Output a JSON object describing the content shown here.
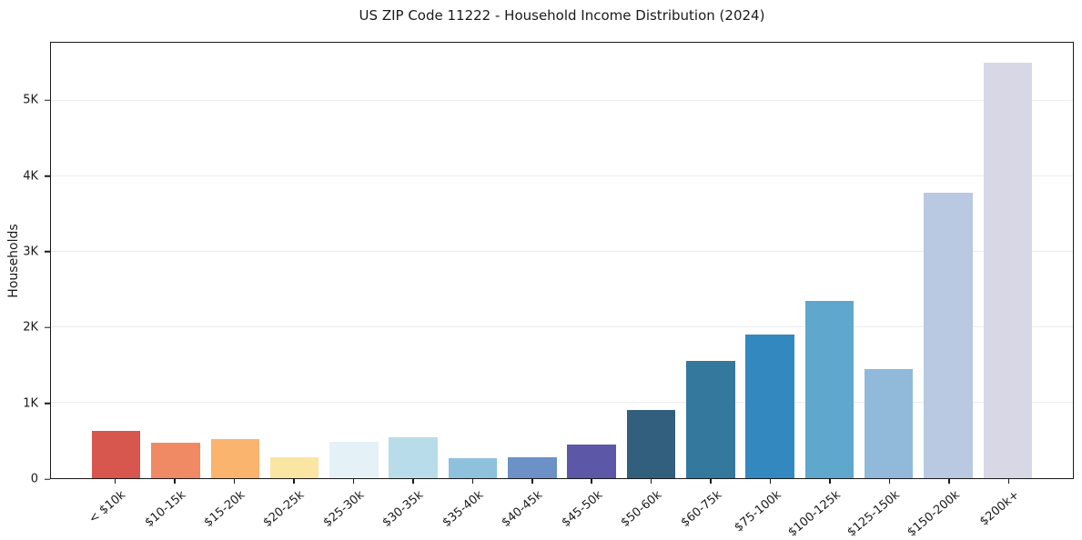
{
  "page": {
    "background": "#ffffff"
  },
  "chart_data": {
    "type": "bar",
    "title": "US ZIP Code 11222 - Household Income Distribution (2024)",
    "xlabel": "",
    "ylabel": "Households",
    "categories": [
      "< $10k",
      "$10-15k",
      "$15-20k",
      "$20-25k",
      "$25-30k",
      "$30-35k",
      "$35-40k",
      "$40-45k",
      "$45-50k",
      "$50-60k",
      "$60-75k",
      "$75-100k",
      "$100-125k",
      "$125-150k",
      "$150-200k",
      "$200k+"
    ],
    "values": [
      630,
      470,
      520,
      280,
      480,
      540,
      260,
      280,
      440,
      900,
      1550,
      1900,
      2350,
      1450,
      3780,
      5500
    ],
    "bar_colors": [
      "#d7564e",
      "#f08a64",
      "#fab46e",
      "#fbe5a2",
      "#e4f1f6",
      "#b9dcea",
      "#8fc1dd",
      "#6b91c7",
      "#5c57a7",
      "#335f7e",
      "#34789d",
      "#3389bf",
      "#60a7cd",
      "#91b9d9",
      "#b9c9e1",
      "#d7d7e6"
    ],
    "yticks": [
      {
        "value": 0,
        "label": "0"
      },
      {
        "value": 1000,
        "label": "1K"
      },
      {
        "value": 2000,
        "label": "2K"
      },
      {
        "value": 3000,
        "label": "3K"
      },
      {
        "value": 4000,
        "label": "4K"
      },
      {
        "value": 5000,
        "label": "5K"
      }
    ],
    "ylim": [
      0,
      5770
    ],
    "grid": "horizontal-only",
    "legend": "none",
    "colors": {
      "spine": "#1a1a1a",
      "grid": "#ececec",
      "text": "#1a1a1a",
      "background": "#ffffff"
    }
  }
}
